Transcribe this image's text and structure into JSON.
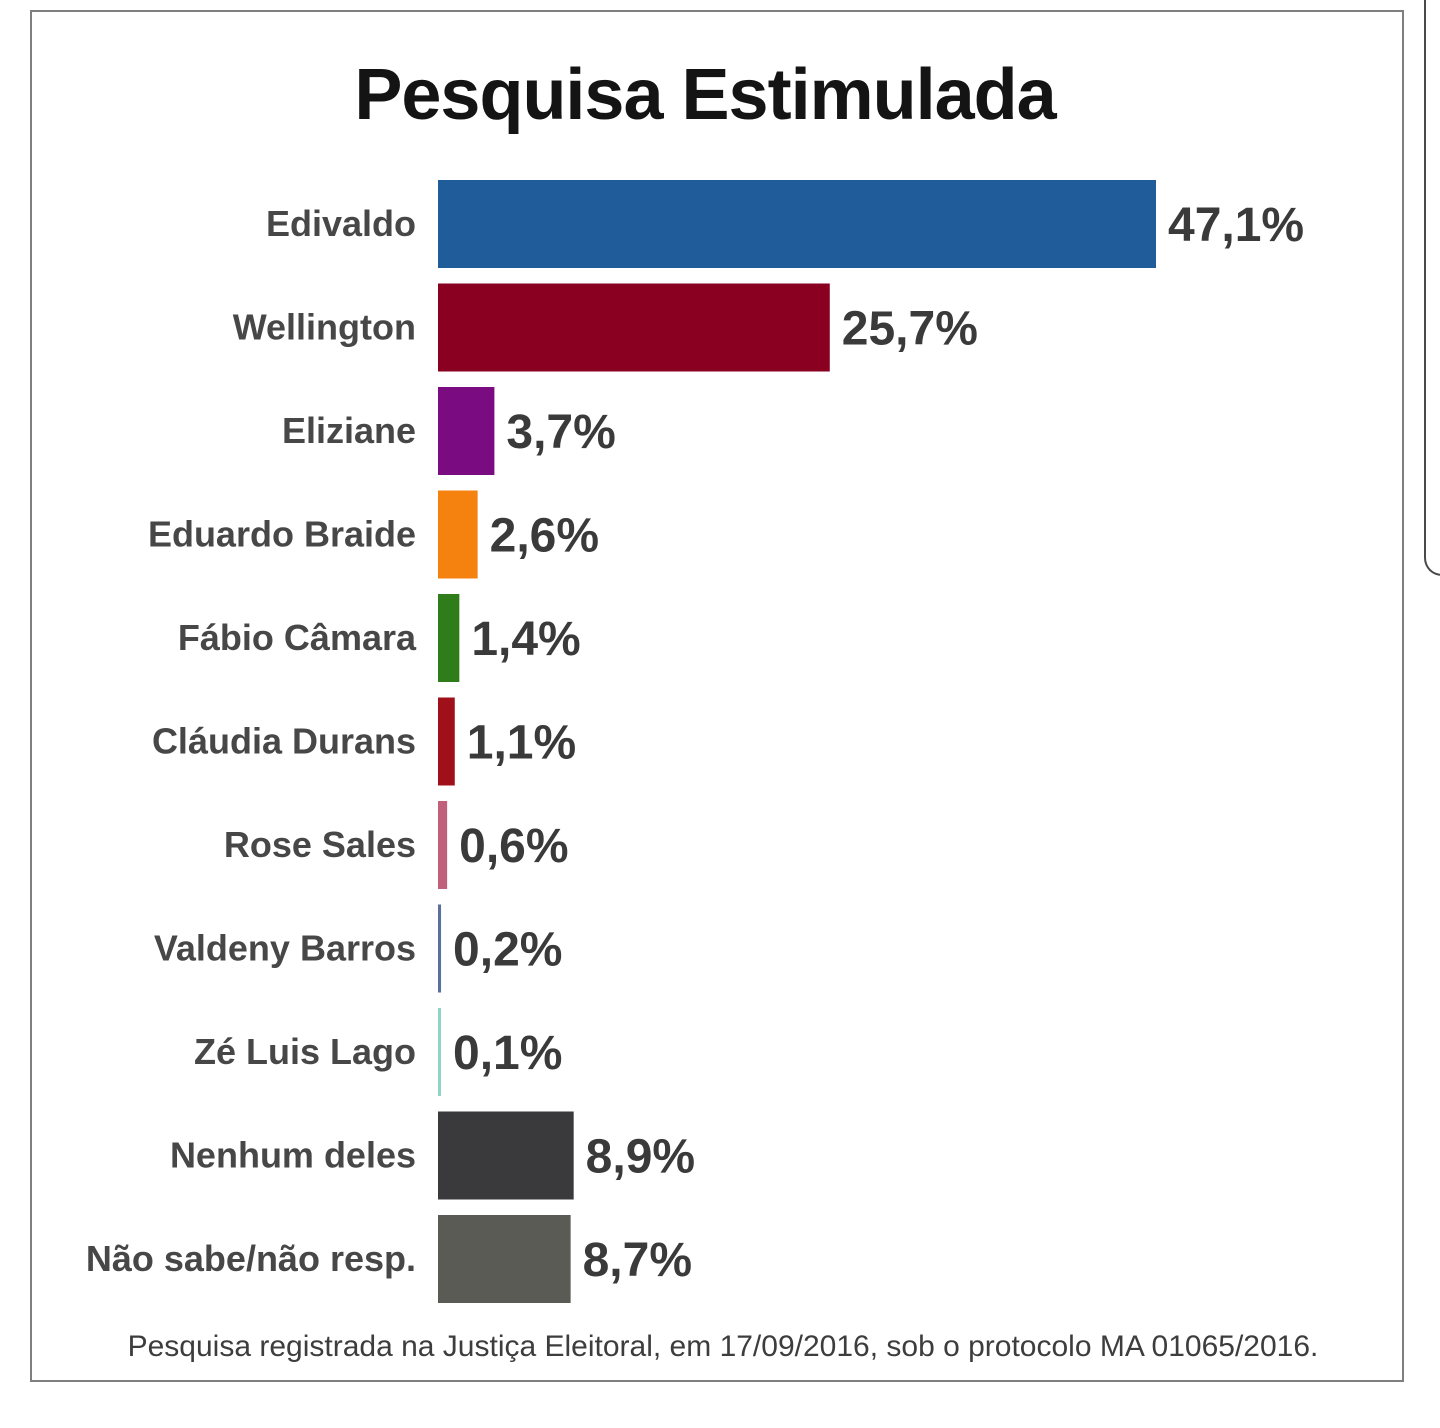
{
  "chart_data": {
    "type": "bar",
    "orientation": "horizontal",
    "title": "Pesquisa Estimulada",
    "categories": [
      "Edivaldo",
      "Wellington",
      "Eliziane",
      "Eduardo Braide",
      "Fábio Câmara",
      "Cláudia Durans",
      "Rose Sales",
      "Valdeny Barros",
      "Zé Luis Lago",
      "Nenhum deles",
      "Não sabe/não resp."
    ],
    "values": [
      47.1,
      25.7,
      3.7,
      2.6,
      1.4,
      1.1,
      0.6,
      0.2,
      0.1,
      8.9,
      8.7
    ],
    "value_labels": [
      "47,1%",
      "25,7%",
      "3,7%",
      "2,6%",
      "1,4%",
      "1,1%",
      "0,6%",
      "0,2%",
      "0,1%",
      "8,9%",
      "8,7%"
    ],
    "colors": [
      "#1f5c99",
      "#8a0020",
      "#7b0b80",
      "#f5820f",
      "#2e7d1a",
      "#a0101a",
      "#c0607a",
      "#5a6f99",
      "#8fd4c4",
      "#3a3a3c",
      "#5b5b56"
    ],
    "xlim": [
      0,
      47.1
    ],
    "grid": false,
    "legend": "none",
    "footnote": "Pesquisa registrada na Justiça Eleitoral, em 17/09/2016, sob o protocolo MA 01065/2016."
  }
}
